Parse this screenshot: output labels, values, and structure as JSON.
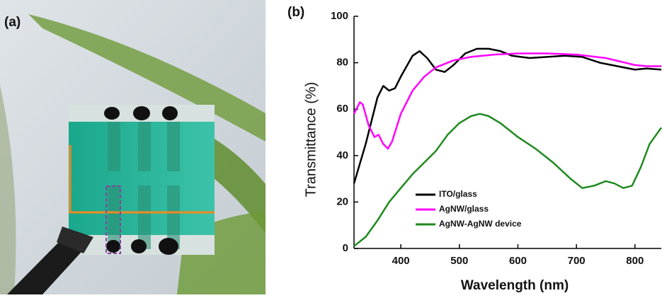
{
  "panel_a": {
    "label": "(a)"
  },
  "chart_data": {
    "type": "line",
    "panel_label": "(b)",
    "x_label": "Wavelength (nm)",
    "y_label": "Transmittance (%)",
    "xlim": [
      320,
      845
    ],
    "xticks": [
      400,
      500,
      600,
      700,
      800
    ],
    "ylim": [
      0,
      100
    ],
    "yticks": [
      0,
      20,
      40,
      60,
      80,
      100
    ],
    "grid": false,
    "legend": "lower left",
    "series": [
      {
        "name": "ITO/glass",
        "color": "#000000",
        "x": [
          320,
          340,
          360,
          370,
          380,
          390,
          400,
          420,
          432,
          445,
          460,
          475,
          490,
          510,
          530,
          550,
          570,
          590,
          620,
          650,
          680,
          710,
          740,
          770,
          800,
          820,
          845
        ],
        "values": [
          28,
          45,
          65,
          70,
          68,
          69,
          74,
          83,
          85,
          82,
          77,
          76,
          79,
          84,
          86,
          86,
          85,
          83,
          82,
          82.5,
          83,
          82.5,
          80,
          78.5,
          77,
          77.5,
          77
        ]
      },
      {
        "name": "AgNW/glass",
        "color": "#ff00ff",
        "x": [
          320,
          330,
          335,
          345,
          355,
          362,
          370,
          378,
          385,
          400,
          420,
          440,
          460,
          490,
          520,
          560,
          600,
          650,
          700,
          750,
          800,
          820,
          845
        ],
        "values": [
          58,
          63,
          62,
          53,
          48,
          49,
          45,
          43,
          46,
          58,
          68,
          74,
          78,
          81,
          82.5,
          83.5,
          84,
          84,
          83.5,
          82,
          79,
          78.5,
          78.5
        ]
      },
      {
        "name": "AgNW-AgNW device",
        "color": "#1f8a1f",
        "x": [
          320,
          340,
          360,
          380,
          400,
          420,
          440,
          460,
          480,
          500,
          520,
          535,
          550,
          570,
          600,
          630,
          660,
          690,
          710,
          730,
          750,
          765,
          780,
          795,
          810,
          825,
          845
        ],
        "values": [
          1,
          5,
          12,
          20,
          26,
          32,
          37,
          42,
          49,
          54,
          57,
          58,
          57,
          54,
          48,
          43,
          37,
          30,
          26,
          27,
          29,
          28,
          26,
          27,
          35,
          45,
          52
        ]
      }
    ]
  }
}
